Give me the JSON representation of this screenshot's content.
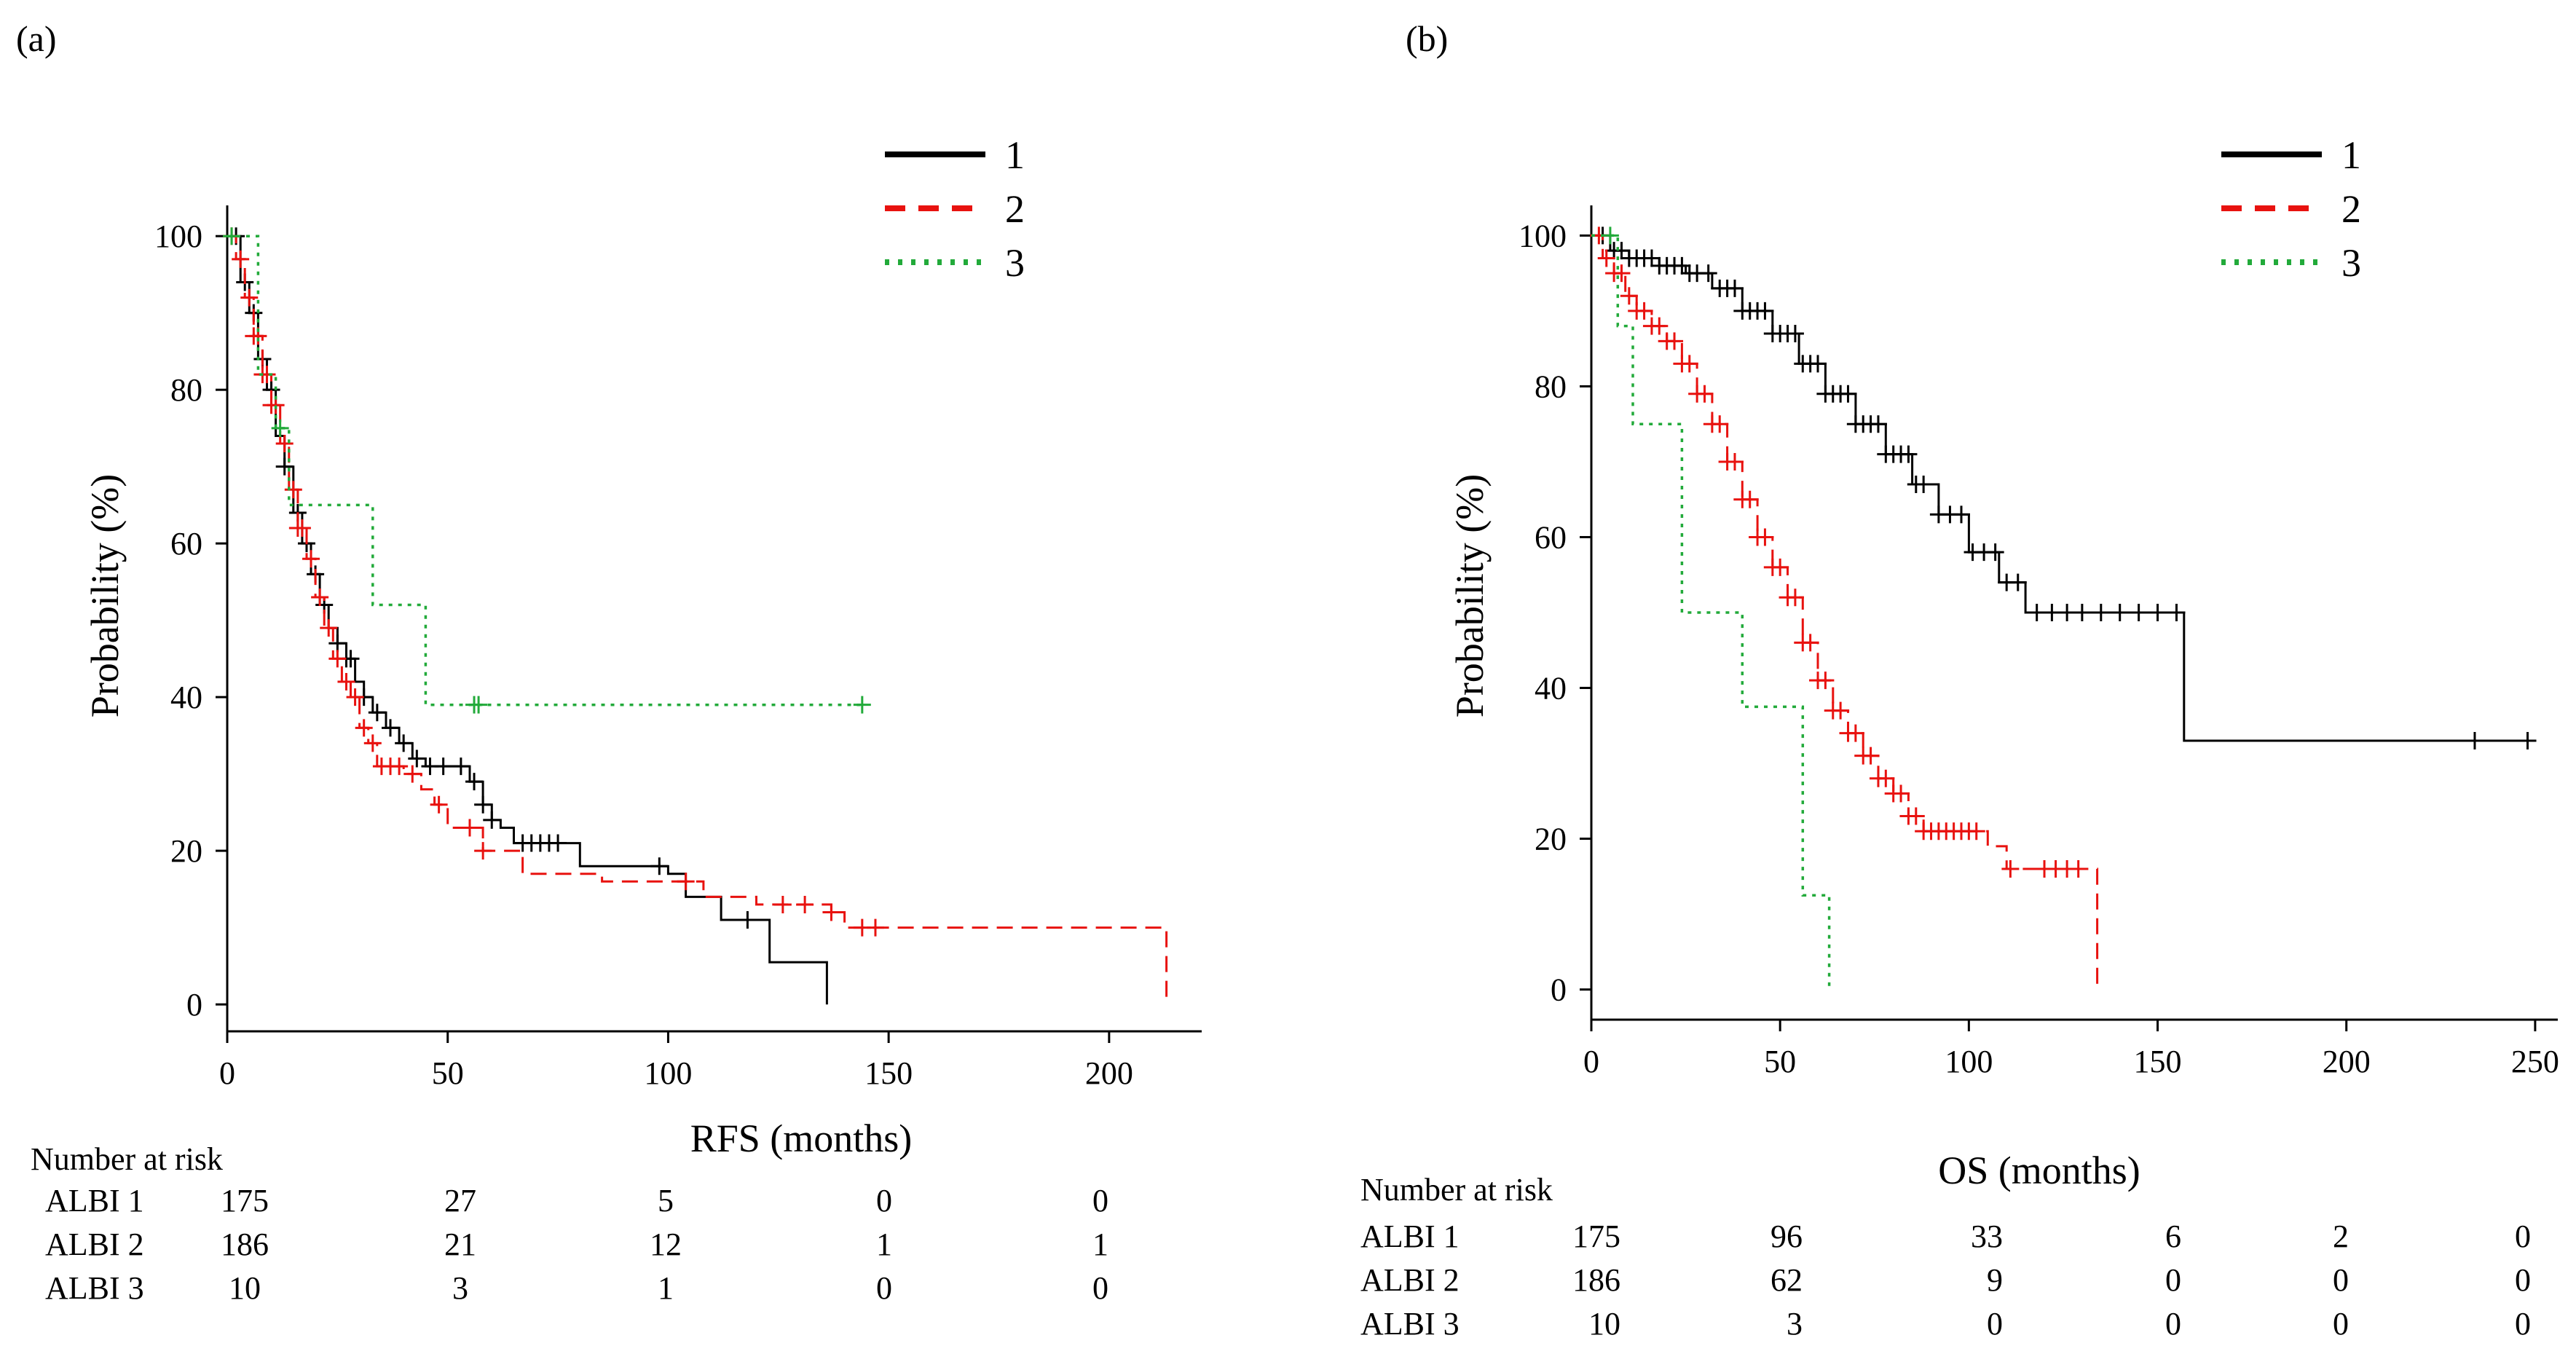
{
  "chart_data": [
    {
      "panel_label": "(a)",
      "type": "line",
      "subtype": "kaplan-meier",
      "xlabel": "RFS (months)",
      "ylabel": "Probability (%)",
      "xlim": [
        0,
        221
      ],
      "ylim": [
        -3.5,
        104
      ],
      "xticks": [
        "0",
        "50",
        "100",
        "150",
        "200"
      ],
      "yticks": [
        "0",
        "20",
        "40",
        "60",
        "80",
        "100"
      ],
      "legend": {
        "position": "top-right",
        "entries": [
          "1",
          "2",
          "3"
        ]
      },
      "series": [
        {
          "name": "1",
          "color": "#000000",
          "dash": "solid",
          "steps": [
            [
              0,
              100
            ],
            [
              3,
              94
            ],
            [
              5,
              90
            ],
            [
              7,
              84
            ],
            [
              9,
              80
            ],
            [
              11,
              74
            ],
            [
              13,
              70
            ],
            [
              15,
              64
            ],
            [
              17,
              60
            ],
            [
              19,
              56
            ],
            [
              21,
              52
            ],
            [
              23,
              49
            ],
            [
              25,
              47
            ],
            [
              27,
              45
            ],
            [
              29,
              42
            ],
            [
              31,
              40
            ],
            [
              33,
              38
            ],
            [
              36,
              36
            ],
            [
              39,
              34
            ],
            [
              42,
              32
            ],
            [
              45,
              31
            ],
            [
              55,
              29
            ],
            [
              58,
              26
            ],
            [
              60,
              24
            ],
            [
              62,
              23
            ],
            [
              65,
              21
            ],
            [
              80,
              18
            ],
            [
              100,
              17
            ],
            [
              104,
              14
            ],
            [
              112,
              11
            ],
            [
              123,
              5.5
            ],
            [
              136,
              0
            ]
          ],
          "censor_x": [
            2,
            4,
            6,
            8,
            10,
            13,
            16,
            18,
            20,
            22,
            25,
            27,
            28,
            31,
            34,
            37,
            40,
            43,
            46,
            49,
            53,
            56,
            58,
            60,
            67,
            69,
            71,
            73,
            75,
            98,
            118
          ]
        },
        {
          "name": "2",
          "color": "#e8120f",
          "dash": "dashed",
          "steps": [
            [
              0,
              100
            ],
            [
              2,
              97
            ],
            [
              4,
              92
            ],
            [
              6,
              87
            ],
            [
              8,
              82
            ],
            [
              10,
              78
            ],
            [
              12,
              73
            ],
            [
              14,
              67
            ],
            [
              16,
              62
            ],
            [
              18,
              58
            ],
            [
              20,
              53
            ],
            [
              22,
              49
            ],
            [
              24,
              45
            ],
            [
              26,
              42
            ],
            [
              28,
              40
            ],
            [
              30,
              36
            ],
            [
              32,
              34
            ],
            [
              34,
              31
            ],
            [
              40,
              30
            ],
            [
              44,
              28
            ],
            [
              47,
              26
            ],
            [
              50,
              23
            ],
            [
              58,
              20
            ],
            [
              67,
              17
            ],
            [
              85,
              16
            ],
            [
              108,
              14
            ],
            [
              120,
              13
            ],
            [
              137,
              12
            ],
            [
              140,
              10
            ],
            [
              213,
              0
            ]
          ],
          "censor_x": [
            1,
            3,
            5,
            6,
            7,
            8,
            9,
            10,
            11,
            13,
            15,
            16,
            17,
            19,
            21,
            23,
            25,
            27,
            29,
            31,
            33,
            35,
            37,
            39,
            42,
            48,
            55,
            58,
            104,
            126,
            131,
            137,
            144,
            147
          ]
        },
        {
          "name": "3",
          "color": "#22aa3a",
          "dash": "dotted",
          "steps": [
            [
              0,
              100
            ],
            [
              7,
              82
            ],
            [
              11,
              75
            ],
            [
              14,
              65
            ],
            [
              33,
              52
            ],
            [
              45,
              39
            ],
            [
              144,
              39
            ]
          ],
          "censor_x": [
            1,
            12,
            56,
            57,
            144
          ]
        }
      ],
      "risk_table": {
        "title": "Number at risk",
        "rows": [
          {
            "label": "ALBI 1",
            "values": [
              "175",
              "27",
              "5",
              "0",
              "0"
            ]
          },
          {
            "label": "ALBI 2",
            "values": [
              "186",
              "21",
              "12",
              "1",
              "1"
            ]
          },
          {
            "label": "ALBI 3",
            "values": [
              "10",
              "3",
              "1",
              "0",
              "0"
            ]
          }
        ]
      }
    },
    {
      "panel_label": "(b)",
      "type": "line",
      "subtype": "kaplan-meier",
      "xlabel": "OS (months)",
      "ylabel": "Probability (%)",
      "xlim": [
        0,
        256
      ],
      "ylim": [
        -4,
        104
      ],
      "xticks": [
        "0",
        "50",
        "100",
        "150",
        "200",
        "250"
      ],
      "yticks": [
        "0",
        "20",
        "40",
        "60",
        "80",
        "100"
      ],
      "legend": {
        "position": "top-right",
        "entries": [
          "1",
          "2",
          "3"
        ]
      },
      "series": [
        {
          "name": "1",
          "color": "#000000",
          "dash": "solid",
          "steps": [
            [
              0,
              100
            ],
            [
              5,
              98
            ],
            [
              10,
              97
            ],
            [
              18,
              96
            ],
            [
              25,
              95
            ],
            [
              32,
              93
            ],
            [
              40,
              90
            ],
            [
              48,
              87
            ],
            [
              55,
              83
            ],
            [
              62,
              79
            ],
            [
              70,
              75
            ],
            [
              78,
              71
            ],
            [
              85,
              67
            ],
            [
              92,
              63
            ],
            [
              100,
              58
            ],
            [
              108,
              54
            ],
            [
              115,
              50
            ],
            [
              157,
              50
            ],
            [
              157,
              33
            ],
            [
              248,
              33
            ]
          ],
          "censor_x": [
            3,
            6,
            8,
            10,
            12,
            14,
            16,
            18,
            20,
            22,
            24,
            26,
            28,
            31,
            34,
            36,
            38,
            40,
            42,
            44,
            46,
            48,
            50,
            52,
            54,
            56,
            58,
            60,
            62,
            64,
            66,
            68,
            70,
            72,
            74,
            76,
            78,
            80,
            82,
            84,
            86,
            88,
            92,
            95,
            98,
            101,
            104,
            107,
            110,
            113,
            118,
            122,
            126,
            130,
            135,
            140,
            145,
            150,
            155,
            234,
            248
          ]
        },
        {
          "name": "2",
          "color": "#e8120f",
          "dash": "dashed",
          "steps": [
            [
              0,
              100
            ],
            [
              3,
              97
            ],
            [
              6,
              95
            ],
            [
              9,
              92
            ],
            [
              12,
              90
            ],
            [
              16,
              88
            ],
            [
              20,
              86
            ],
            [
              24,
              83
            ],
            [
              28,
              79
            ],
            [
              32,
              75
            ],
            [
              36,
              70
            ],
            [
              40,
              65
            ],
            [
              44,
              60
            ],
            [
              48,
              56
            ],
            [
              52,
              52
            ],
            [
              56,
              46
            ],
            [
              60,
              41
            ],
            [
              64,
              37
            ],
            [
              68,
              34
            ],
            [
              72,
              31
            ],
            [
              76,
              28
            ],
            [
              80,
              26
            ],
            [
              84,
              23
            ],
            [
              88,
              21
            ],
            [
              105,
              19
            ],
            [
              110,
              16
            ],
            [
              134,
              16
            ],
            [
              134,
              0
            ]
          ],
          "censor_x": [
            2,
            4,
            6,
            8,
            10,
            12,
            14,
            16,
            18,
            20,
            22,
            24,
            26,
            28,
            30,
            32,
            34,
            36,
            38,
            40,
            42,
            44,
            46,
            48,
            50,
            52,
            54,
            56,
            58,
            60,
            62,
            64,
            66,
            68,
            70,
            72,
            74,
            76,
            78,
            80,
            82,
            84,
            86,
            88,
            90,
            92,
            94,
            96,
            98,
            100,
            102,
            111,
            120,
            123,
            126,
            129
          ]
        },
        {
          "name": "3",
          "color": "#22aa3a",
          "dash": "dotted",
          "steps": [
            [
              0,
              100
            ],
            [
              7,
              88
            ],
            [
              11,
              75
            ],
            [
              24,
              50
            ],
            [
              40,
              37.5
            ],
            [
              56,
              12.5
            ],
            [
              63,
              0
            ]
          ],
          "censor_x": [
            5
          ]
        }
      ],
      "risk_table": {
        "title": "Number at risk",
        "rows": [
          {
            "label": "ALBI 1",
            "values": [
              "175",
              "96",
              "33",
              "6",
              "2",
              "0"
            ]
          },
          {
            "label": "ALBI 2",
            "values": [
              "186",
              "62",
              "9",
              "0",
              "0",
              "0"
            ]
          },
          {
            "label": "ALBI 3",
            "values": [
              "10",
              "3",
              "0",
              "0",
              "0",
              "0"
            ]
          }
        ]
      }
    }
  ]
}
